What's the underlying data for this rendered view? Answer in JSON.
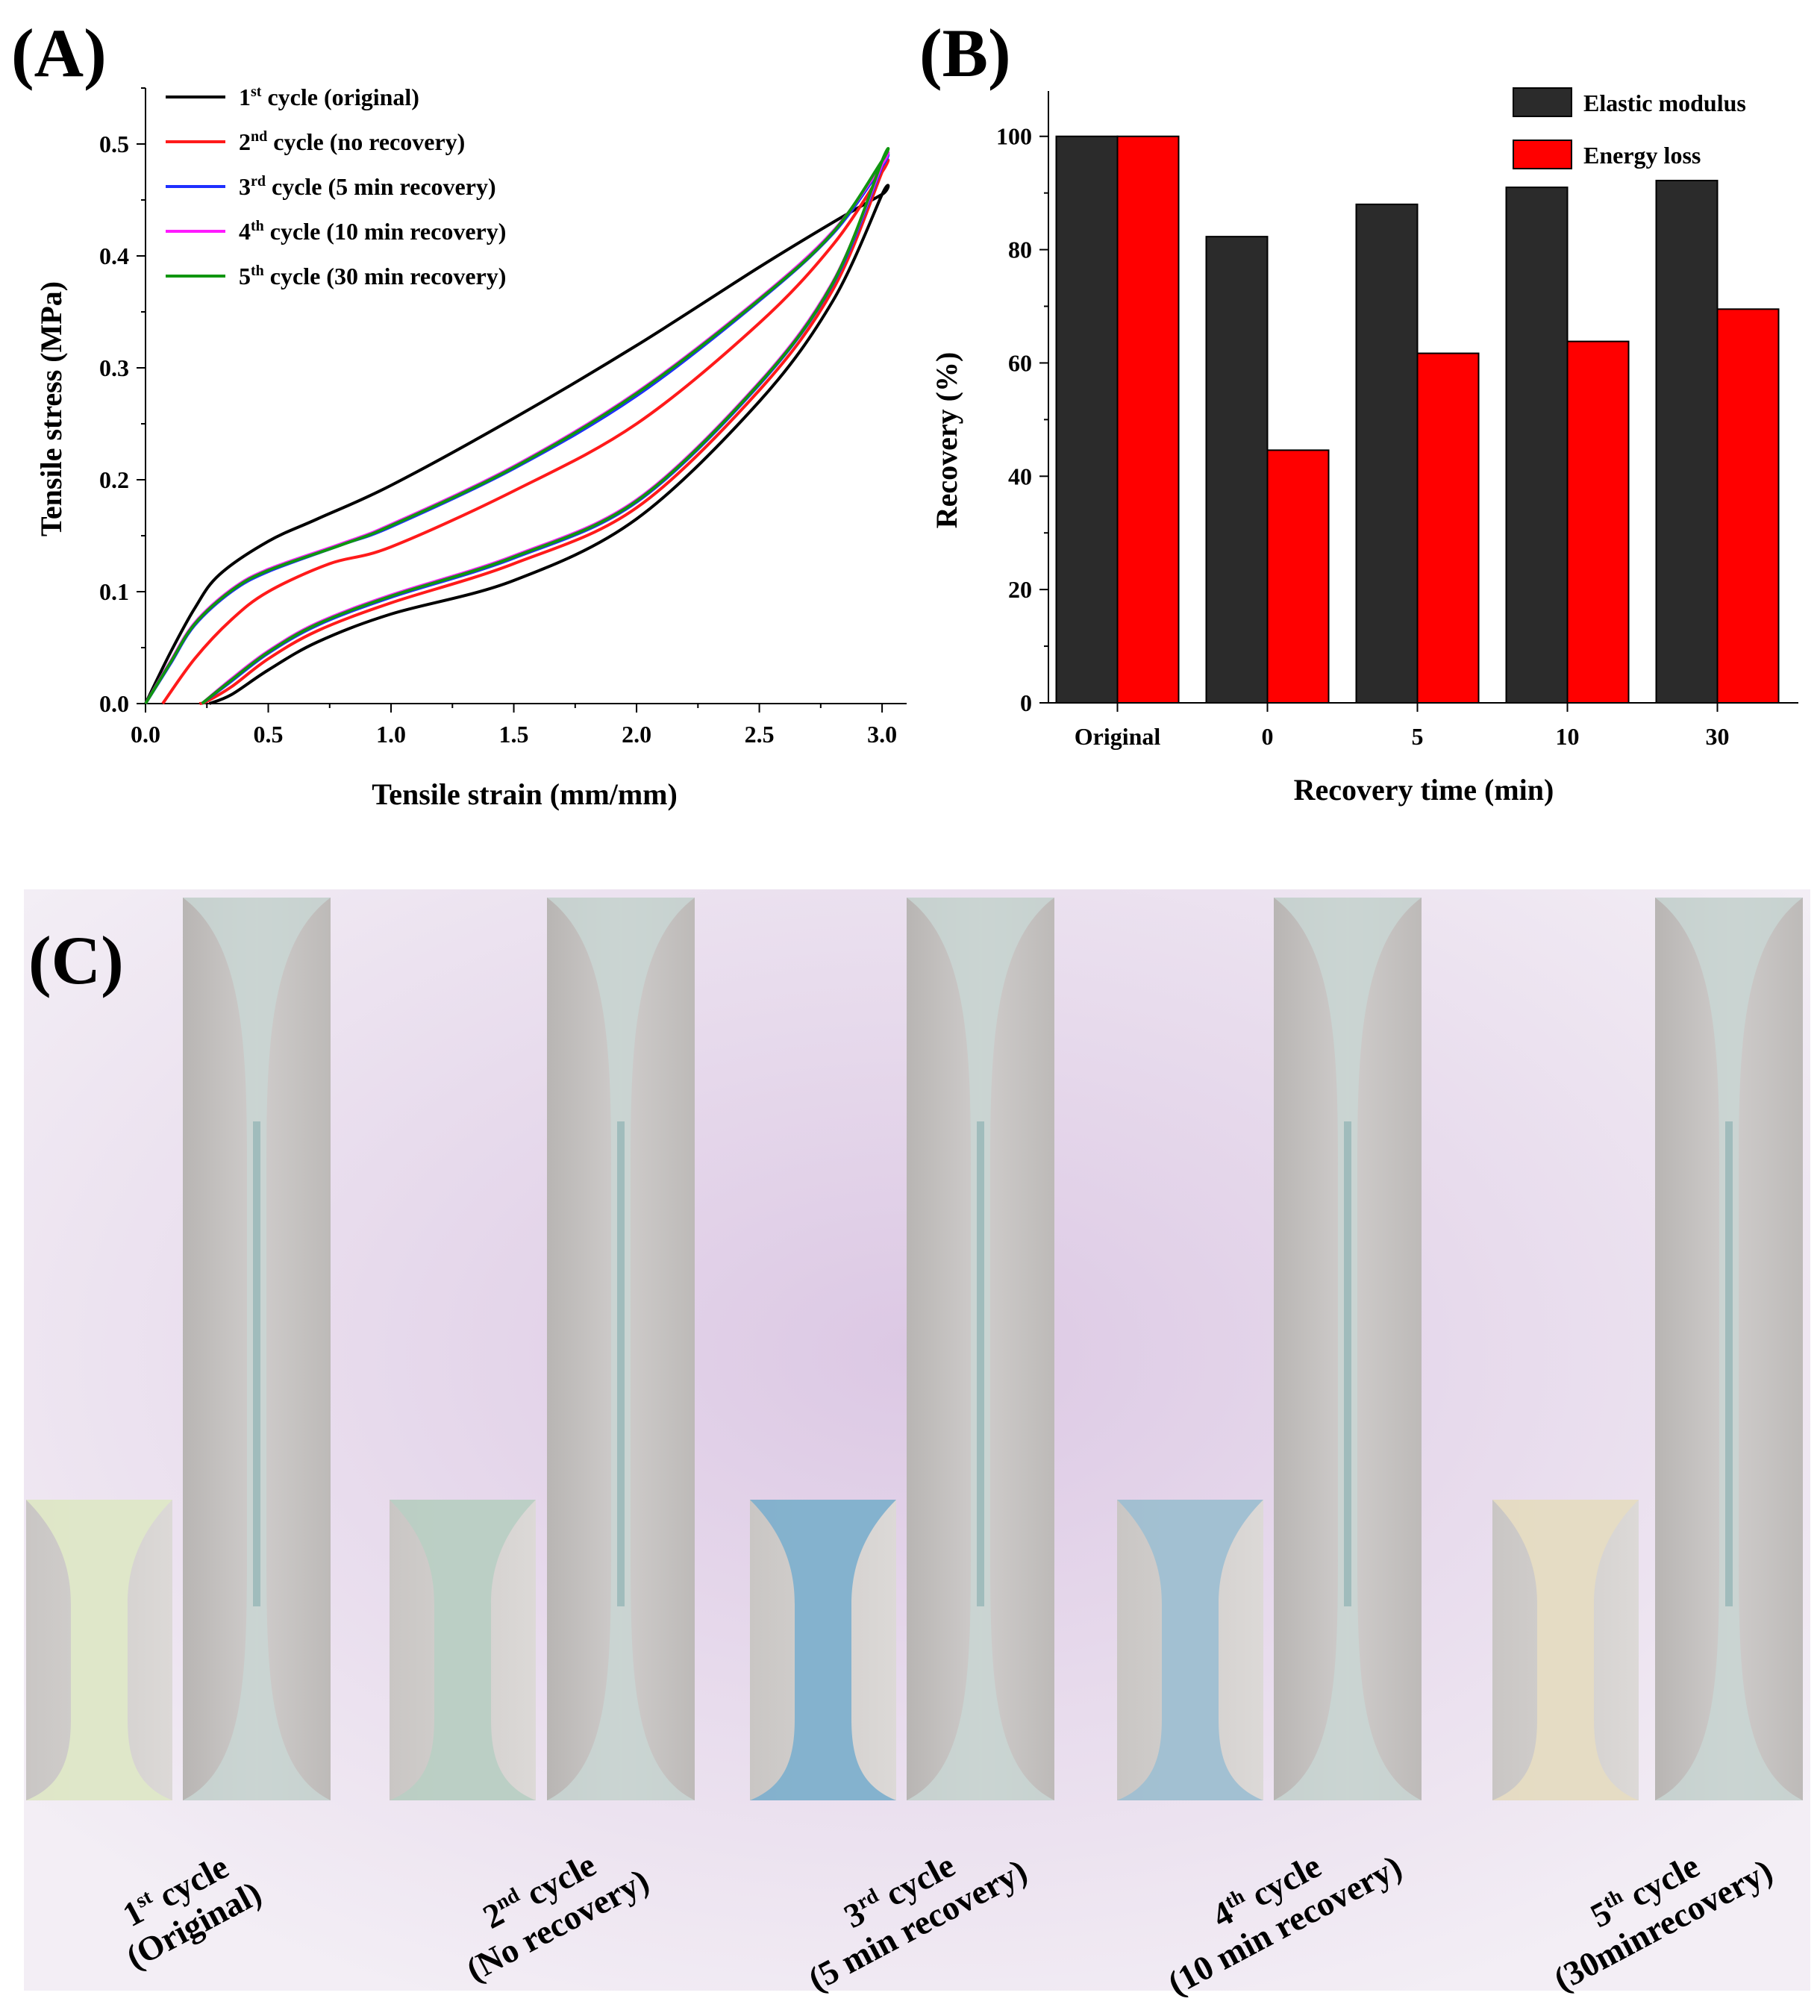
{
  "panels": {
    "a": "(A)",
    "b": "(B)",
    "c": "(C)"
  },
  "chart_data": [
    {
      "type": "line",
      "xlabel": "Tensile strain (mm/mm)",
      "ylabel": "Tensile stress (MPa)",
      "xlim": [
        0.0,
        3.1
      ],
      "ylim": [
        0.0,
        0.55
      ],
      "xticks": [
        "0.0",
        "0.5",
        "1.0",
        "1.5",
        "2.0",
        "2.5",
        "3.0"
      ],
      "yticks": [
        "0.0",
        "0.1",
        "0.2",
        "0.3",
        "0.4",
        "0.5"
      ],
      "legend_position": "top-left",
      "series": [
        {
          "name_ord": "1",
          "name_sup": "st",
          "name_rest": " cycle (original)",
          "color": "#000000",
          "x": [
            0.0,
            0.1,
            0.2,
            0.3,
            0.5,
            0.7,
            1.0,
            1.5,
            2.0,
            2.5,
            2.8,
            3.0,
            3.0,
            2.8,
            2.5,
            2.0,
            1.5,
            1.0,
            0.7,
            0.5,
            0.35,
            0.26
          ],
          "y": [
            0.0,
            0.045,
            0.085,
            0.115,
            0.145,
            0.165,
            0.195,
            0.255,
            0.32,
            0.39,
            0.43,
            0.455,
            0.455,
            0.36,
            0.27,
            0.165,
            0.11,
            0.08,
            0.055,
            0.03,
            0.008,
            0.0
          ]
        },
        {
          "name_ord": "2",
          "name_sup": "nd",
          "name_rest": " cycle (no recovery)",
          "color": "#ff1a1a",
          "x": [
            0.07,
            0.2,
            0.35,
            0.5,
            0.75,
            1.0,
            1.5,
            2.0,
            2.5,
            2.8,
            3.0,
            3.0,
            2.8,
            2.5,
            2.0,
            1.5,
            1.0,
            0.7,
            0.5,
            0.35,
            0.25,
            0.22
          ],
          "y": [
            0.0,
            0.04,
            0.075,
            0.1,
            0.125,
            0.14,
            0.19,
            0.25,
            0.34,
            0.41,
            0.475,
            0.475,
            0.37,
            0.28,
            0.175,
            0.125,
            0.09,
            0.065,
            0.04,
            0.015,
            0.002,
            0.0
          ]
        },
        {
          "name_ord": "3",
          "name_sup": "rd",
          "name_rest": " cycle (5 min recovery)",
          "color": "#1f2fff",
          "x": [
            0.0,
            0.1,
            0.2,
            0.35,
            0.5,
            0.8,
            1.0,
            1.5,
            2.0,
            2.5,
            2.8,
            3.0,
            3.0,
            2.8,
            2.5,
            2.0,
            1.5,
            1.0,
            0.7,
            0.5,
            0.35,
            0.23
          ],
          "y": [
            0.0,
            0.035,
            0.07,
            0.1,
            0.118,
            0.142,
            0.158,
            0.21,
            0.275,
            0.36,
            0.42,
            0.48,
            0.48,
            0.375,
            0.285,
            0.18,
            0.13,
            0.095,
            0.07,
            0.045,
            0.02,
            0.0
          ]
        },
        {
          "name_ord": "4",
          "name_sup": "th",
          "name_rest": " cycle (10 min recovery)",
          "color": "#ff1aff",
          "x": [
            0.0,
            0.1,
            0.2,
            0.35,
            0.5,
            0.8,
            1.0,
            1.5,
            2.0,
            2.5,
            2.8,
            3.0,
            3.0,
            2.8,
            2.5,
            2.0,
            1.5,
            1.0,
            0.7,
            0.5,
            0.35,
            0.23
          ],
          "y": [
            0.0,
            0.037,
            0.072,
            0.102,
            0.12,
            0.143,
            0.16,
            0.212,
            0.278,
            0.362,
            0.422,
            0.482,
            0.482,
            0.377,
            0.287,
            0.182,
            0.132,
            0.097,
            0.072,
            0.047,
            0.022,
            0.0
          ]
        },
        {
          "name_ord": "5",
          "name_sup": "th",
          "name_rest": " cycle (30 min recovery)",
          "color": "#109610",
          "x": [
            0.0,
            0.1,
            0.2,
            0.35,
            0.5,
            0.8,
            1.0,
            1.5,
            2.0,
            2.5,
            2.8,
            3.0,
            3.0,
            2.8,
            2.5,
            2.0,
            1.5,
            1.0,
            0.7,
            0.5,
            0.35,
            0.23
          ],
          "y": [
            0.0,
            0.036,
            0.071,
            0.101,
            0.119,
            0.142,
            0.159,
            0.211,
            0.277,
            0.361,
            0.421,
            0.485,
            0.485,
            0.376,
            0.286,
            0.181,
            0.131,
            0.096,
            0.071,
            0.046,
            0.021,
            0.0
          ]
        }
      ]
    },
    {
      "type": "bar",
      "xlabel": "Recovery time (min)",
      "ylabel": "Recovery (%)",
      "ylim": [
        0,
        108
      ],
      "yticks": [
        "0",
        "20",
        "40",
        "60",
        "80",
        "100"
      ],
      "categories": [
        "Original",
        "0",
        "5",
        "10",
        "30"
      ],
      "legend_position": "top-right",
      "series": [
        {
          "name": "Elastic modulus",
          "color": "#2b2b2b",
          "values": [
            100,
            82.3,
            88,
            91,
            92.2
          ]
        },
        {
          "name": "Energy loss",
          "color": "#ff0000",
          "values": [
            100,
            44.6,
            61.7,
            63.8,
            69.5
          ]
        }
      ]
    }
  ],
  "photos": {
    "captions": [
      {
        "ord": "1",
        "sup": "st",
        "line1_rest": " cycle",
        "line2": "(Original)"
      },
      {
        "ord": "2",
        "sup": "nd",
        "line1_rest": " cycle",
        "line2": "(No recovery)"
      },
      {
        "ord": "3",
        "sup": "rd",
        "line1_rest": " cycle",
        "line2": "(5 min recovery)"
      },
      {
        "ord": "4",
        "sup": "th",
        "line1_rest": " cycle",
        "line2": "(10 min recovery)"
      },
      {
        "ord": "5",
        "sup": "th",
        "line1_rest": " cycle",
        "line2": "(30minrecovery)"
      }
    ],
    "band_tints": [
      "#efe7f0",
      "#ede3ef",
      "#e6d5ea",
      "#ece2ef",
      "#f0e8f2"
    ],
    "specimen_tints": [
      "#dfe8c8",
      "#b9cfc4",
      "#7fb0cd",
      "#9fbfd2",
      "#e6dcc3"
    ]
  }
}
